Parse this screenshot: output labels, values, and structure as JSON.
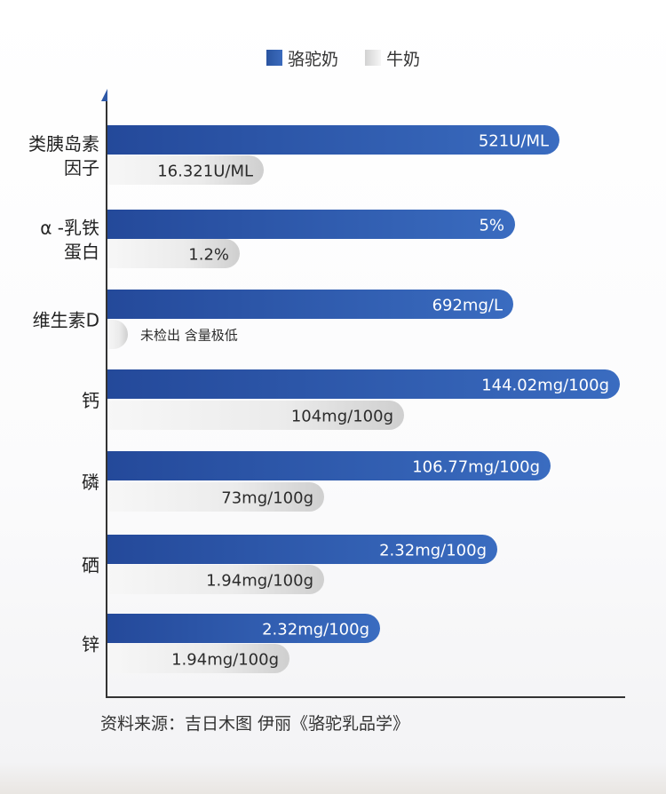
{
  "legend": [
    {
      "label": "骆驼奶",
      "color": "#2d58a6"
    },
    {
      "label": "牛奶",
      "color": "#e0e0e0"
    }
  ],
  "source": "资料来源：吉日木图 伊丽《骆驼乳品学》",
  "chart_data": {
    "type": "bar",
    "orientation": "horizontal",
    "categories": [
      "类胰岛素因子",
      "α -乳铁蛋白",
      "维生素D",
      "钙",
      "磷",
      "硒",
      "锌"
    ],
    "category_lines": [
      [
        "类胰岛素",
        "因子"
      ],
      [
        "α -乳铁",
        "蛋白"
      ],
      [
        "维生素D"
      ],
      [
        "钙"
      ],
      [
        "磷"
      ],
      [
        "硒"
      ],
      [
        "锌"
      ]
    ],
    "series": [
      {
        "name": "骆驼奶",
        "color": "#2d58a6",
        "labels": [
          "521U/ML",
          "5%",
          "692mg/L",
          "144.02mg/100g",
          "106.77mg/100g",
          "2.32mg/100g",
          "2.32mg/100g"
        ],
        "bar_length": [
          510,
          460,
          458,
          578,
          500,
          440,
          308
        ]
      },
      {
        "name": "牛奶",
        "color": "#e0e0e0",
        "labels": [
          "16.321U/ML",
          "1.2%",
          "未检出 含量极低",
          "104mg/100g",
          "73mg/100g",
          "1.94mg/100g",
          "1.94mg/100g"
        ],
        "bar_length": [
          177,
          150,
          24,
          335,
          245,
          245,
          206
        ]
      }
    ],
    "grid": false,
    "legend_position": "top"
  }
}
